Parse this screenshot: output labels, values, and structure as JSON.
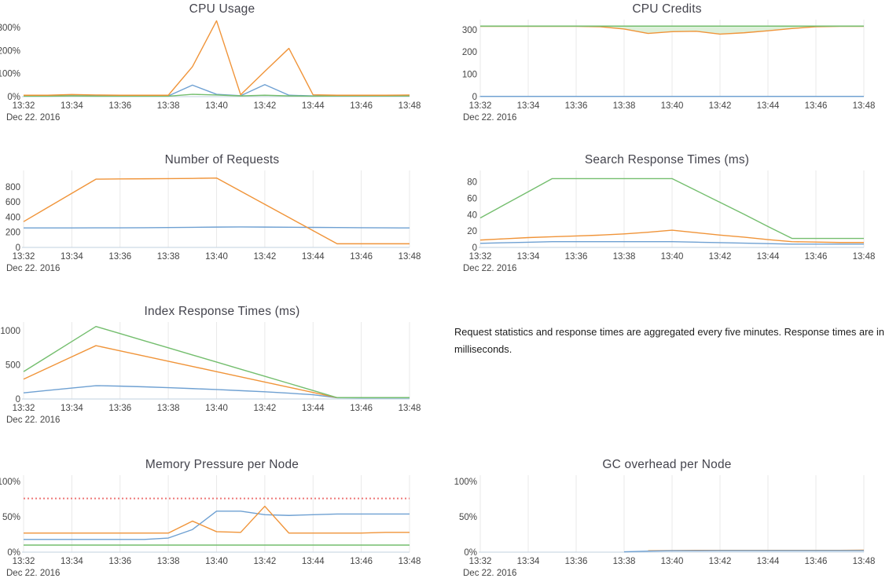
{
  "x_axis": {
    "tick_labels": [
      "13:32",
      "13:34",
      "13:36",
      "13:38",
      "13:40",
      "13:42",
      "13:44",
      "13:46",
      "13:48"
    ],
    "date_label": "Dec 22. 2016"
  },
  "note": {
    "text": "Request statistics and response times are aggregated every five minutes. Response times are in milliseconds."
  },
  "palette": {
    "blue": "#6ea0d2",
    "orange": "#f09439",
    "green": "#74be6e",
    "red": "#ee7878",
    "axis_line": "#cdd9e5",
    "grid_line": "#e9e9e9",
    "fill_green": "#ddf0da",
    "title_text": "#44444d",
    "tick_text": "#454545"
  },
  "chart_data": [
    {
      "type": "line",
      "title": "CPU Usage",
      "grid": false,
      "ylim": [
        0,
        335
      ],
      "yticks": [
        {
          "value": 0,
          "label": "0%"
        },
        {
          "value": 100,
          "label": "100%"
        },
        {
          "value": 200,
          "label": "200%"
        },
        {
          "value": 300,
          "label": "300%"
        }
      ],
      "series": [
        {
          "name": "blue",
          "color": "#6ea0d2",
          "values": [
            3,
            3,
            4,
            3,
            3,
            3,
            3,
            50,
            10,
            4,
            52,
            6,
            3,
            3,
            3,
            3,
            3
          ]
        },
        {
          "name": "green",
          "color": "#74be6e",
          "values": [
            2,
            2,
            3,
            2,
            2,
            2,
            2,
            10,
            7,
            3,
            6,
            3,
            2,
            3,
            3,
            3,
            3
          ]
        },
        {
          "name": "orange",
          "color": "#f09439",
          "values": [
            6,
            6,
            9,
            7,
            6,
            6,
            6,
            130,
            330,
            8,
            110,
            210,
            8,
            6,
            6,
            6,
            7
          ]
        }
      ]
    },
    {
      "type": "line",
      "title": "CPU Credits",
      "grid": true,
      "ylim": [
        0,
        345
      ],
      "yticks": [
        {
          "value": 0,
          "label": "0"
        },
        {
          "value": 100,
          "label": "100"
        },
        {
          "value": 200,
          "label": "200"
        },
        {
          "value": 300,
          "label": "300"
        }
      ],
      "fill_between": {
        "upper": 2,
        "lower": 1,
        "color": "#ddf0da"
      },
      "series": [
        {
          "name": "blue",
          "color": "#6ea0d2",
          "values": [
            1,
            1,
            1,
            1,
            1,
            1,
            1,
            1,
            1,
            1,
            1,
            1,
            1,
            1,
            1,
            1,
            1
          ]
        },
        {
          "name": "orange",
          "color": "#f09439",
          "values": [
            315,
            315,
            315,
            315,
            315,
            313,
            303,
            283,
            291,
            293,
            280,
            286,
            295,
            305,
            313,
            315,
            315
          ]
        },
        {
          "name": "green",
          "color": "#74be6e",
          "values": [
            316,
            316,
            316,
            316,
            316,
            316,
            316,
            316,
            316,
            316,
            316,
            316,
            316,
            316,
            316,
            316,
            316
          ]
        }
      ]
    },
    {
      "type": "line",
      "title": "Number of Requests",
      "grid": true,
      "ylim": [
        0,
        1015
      ],
      "yticks": [
        {
          "value": 0,
          "label": "0"
        },
        {
          "value": 200,
          "label": "200"
        },
        {
          "value": 400,
          "label": "400"
        },
        {
          "value": 600,
          "label": "600"
        },
        {
          "value": 800,
          "label": "800"
        }
      ],
      "series": [
        {
          "name": "blue",
          "color": "#6ea0d2",
          "values": [
            257,
            257,
            257,
            258,
            258,
            260,
            262,
            265,
            268,
            270,
            268,
            266,
            264,
            262,
            260,
            258,
            257
          ]
        },
        {
          "name": "orange",
          "color": "#f09439",
          "values": [
            340,
            527,
            713,
            900,
            903,
            905,
            907,
            910,
            915,
            742,
            568,
            395,
            221,
            48,
            48,
            48,
            48
          ]
        }
      ]
    },
    {
      "type": "line",
      "title": "Search Response Times (ms)",
      "grid": true,
      "ylim": [
        0,
        94
      ],
      "yticks": [
        {
          "value": 0,
          "label": "0"
        },
        {
          "value": 20,
          "label": "20"
        },
        {
          "value": 40,
          "label": "40"
        },
        {
          "value": 60,
          "label": "60"
        },
        {
          "value": 80,
          "label": "80"
        }
      ],
      "series": [
        {
          "name": "blue",
          "color": "#6ea0d2",
          "values": [
            5,
            5.7,
            6.3,
            7,
            7,
            7,
            7,
            7,
            7,
            6.4,
            5.8,
            5.2,
            4.6,
            4,
            4,
            4,
            4
          ]
        },
        {
          "name": "orange",
          "color": "#f09439",
          "values": [
            9,
            10.5,
            12,
            13,
            14,
            15,
            16.5,
            18.5,
            21,
            18,
            15,
            12.5,
            9.5,
            7,
            6.5,
            6,
            6
          ]
        },
        {
          "name": "green",
          "color": "#74be6e",
          "values": [
            36,
            52,
            68,
            84,
            84,
            84,
            84,
            84,
            84,
            69.5,
            55,
            40.5,
            25.5,
            11,
            11,
            11,
            11
          ]
        }
      ]
    },
    {
      "type": "line",
      "title": "Index Response Times (ms)",
      "grid": true,
      "ylim": [
        0,
        1125
      ],
      "yticks": [
        {
          "value": 0,
          "label": "0"
        },
        {
          "value": 500,
          "label": "500"
        },
        {
          "value": 1000,
          "label": "1000"
        }
      ],
      "series": [
        {
          "name": "blue",
          "color": "#6ea0d2",
          "values": [
            90,
            125,
            160,
            195,
            188,
            178,
            166,
            152,
            138,
            122,
            105,
            85,
            62,
            18,
            15,
            15,
            15
          ]
        },
        {
          "name": "orange",
          "color": "#f09439",
          "values": [
            290,
            453,
            617,
            780,
            704,
            628,
            552,
            476,
            400,
            324,
            248,
            172,
            96,
            20,
            20,
            20,
            20
          ]
        },
        {
          "name": "green",
          "color": "#74be6e",
          "values": [
            400,
            620,
            840,
            1060,
            956,
            852,
            748,
            644,
            540,
            436,
            332,
            228,
            124,
            20,
            20,
            20,
            20
          ]
        }
      ]
    },
    {
      "type": "line",
      "title": "Memory Pressure per Node",
      "grid": true,
      "ylim": [
        0,
        109
      ],
      "yticks": [
        {
          "value": 0,
          "label": "0%"
        },
        {
          "value": 50,
          "label": "50%"
        },
        {
          "value": 100,
          "label": "100%"
        }
      ],
      "series": [
        {
          "name": "threshold",
          "color": "#ee7878",
          "dash": "2,3",
          "width": 2,
          "values": [
            76,
            76,
            76,
            76,
            76,
            76,
            76,
            76,
            76,
            76,
            76,
            76,
            76,
            76,
            76,
            76,
            76
          ]
        },
        {
          "name": "green",
          "color": "#74be6e",
          "values": [
            10,
            10,
            10,
            10,
            10,
            10,
            10,
            10,
            10,
            10,
            10,
            10,
            10,
            10,
            10,
            10,
            10
          ]
        },
        {
          "name": "blue",
          "color": "#6ea0d2",
          "values": [
            18,
            18,
            18,
            18,
            18,
            18,
            20,
            32,
            58,
            58,
            53,
            52,
            53,
            54,
            54,
            54,
            54
          ]
        },
        {
          "name": "orange",
          "color": "#f09439",
          "values": [
            27,
            27,
            27,
            27,
            27,
            27,
            27,
            44,
            29,
            28,
            65,
            27,
            27,
            27,
            27,
            28,
            28
          ]
        }
      ]
    },
    {
      "type": "line",
      "title": "GC overhead per Node",
      "grid": true,
      "ylim": [
        0,
        109
      ],
      "yticks": [
        {
          "value": 0,
          "label": "0%"
        },
        {
          "value": 50,
          "label": "50%"
        },
        {
          "value": 100,
          "label": "100%"
        }
      ],
      "series": [
        {
          "name": "orange",
          "color": "#f09439",
          "values": [
            null,
            null,
            null,
            null,
            null,
            null,
            null,
            2,
            2.3,
            2.5,
            2.5,
            2.5,
            2.5,
            2.5,
            2.5,
            2.5,
            2.8
          ]
        },
        {
          "name": "blue",
          "color": "#6ea0d2",
          "values": [
            null,
            null,
            null,
            null,
            null,
            null,
            0.5,
            1.5,
            2,
            2,
            2.2,
            2.2,
            2.2,
            2.2,
            2.2,
            2.2,
            2.2
          ]
        }
      ]
    }
  ]
}
